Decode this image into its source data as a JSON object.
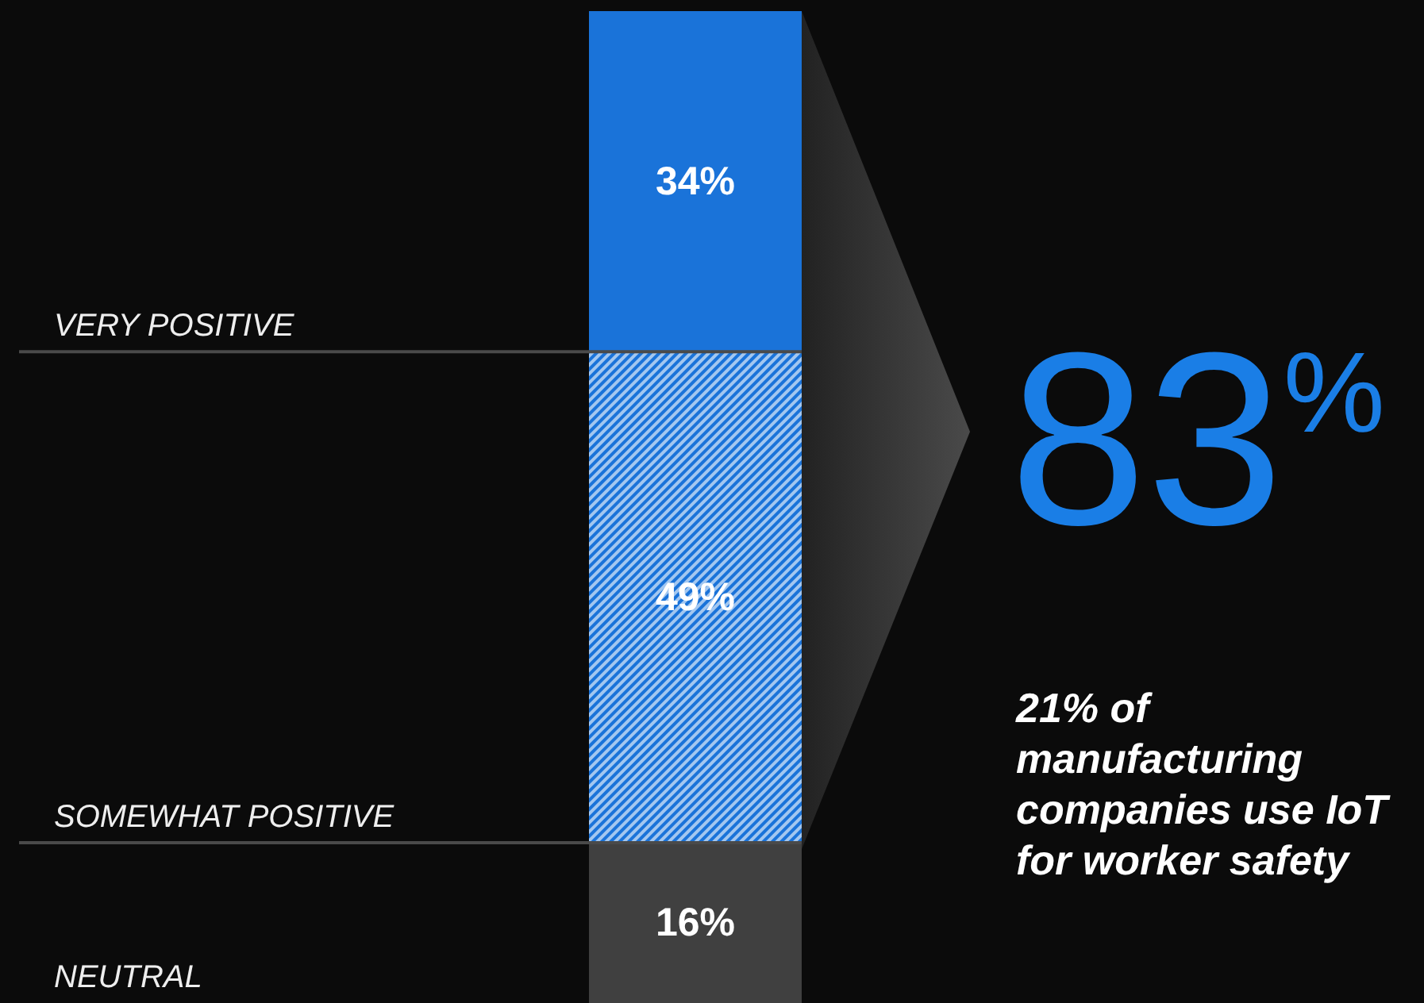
{
  "chart_data": {
    "type": "bar",
    "stacked": true,
    "categories": [
      null
    ],
    "series": [
      {
        "color": "#404040",
        "values": [
          16
        ],
        "value_labels": [
          "16%"
        ]
      },
      {
        "color": "#1a73d9",
        "values": [
          49
        ],
        "value_labels": [
          "49%"
        ]
      },
      {
        "color": "#1a73d9",
        "values": [
          34
        ],
        "value_labels": [
          "34%"
        ]
      }
    ],
    "ref_lines": [
      {
        "axis": "y",
        "value": 65,
        "label": "VERY POSITIVE",
        "color": "#4a4a4a"
      },
      {
        "axis": "y",
        "value": 16,
        "label": "SOMEWHAT POSITIVE",
        "color": "#4a4a4a"
      }
    ],
    "annotations": [
      "NEUTRAL",
      "83$^{%}$",
      "21% of manufacturing companies use IoT for worker safety"
    ]
  }
}
